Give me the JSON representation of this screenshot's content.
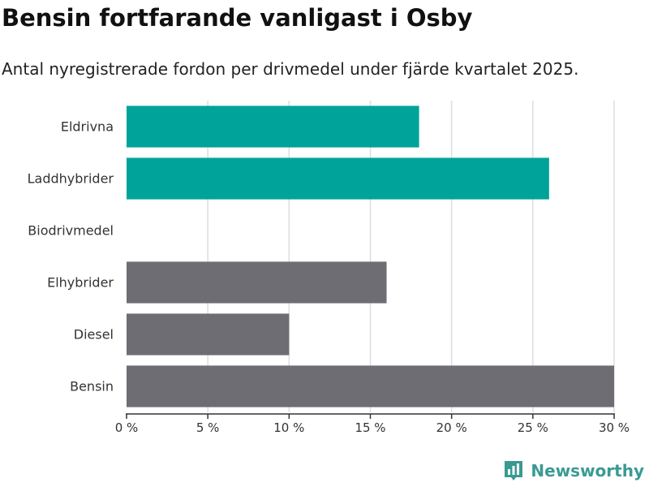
{
  "title": "Bensin fortfarande vanligast i Osby",
  "subtitle": "Antal nyregistrerade fordon per drivmedel under fjärde kvartalet 2025.",
  "brand": "Newsworthy",
  "colors": {
    "highlight": "#00A39A",
    "base": "#6E6D74",
    "grid": "#dddddd",
    "axis": "#333333",
    "brand": "#3a9a93"
  },
  "chart_data": {
    "type": "bar",
    "orientation": "horizontal",
    "categories": [
      "Eldrivna",
      "Laddhybrider",
      "Biodrivmedel",
      "Elhybrider",
      "Diesel",
      "Bensin"
    ],
    "values": [
      18,
      26,
      0,
      16,
      10,
      30
    ],
    "highlighted": [
      true,
      true,
      true,
      false,
      false,
      false
    ],
    "xlim": [
      0,
      30
    ],
    "xticks": [
      0,
      5,
      10,
      15,
      20,
      25,
      30
    ],
    "xtick_labels": [
      "0 %",
      "5 %",
      "10 %",
      "15 %",
      "20 %",
      "25 %",
      "30 %"
    ],
    "unit": "%",
    "grid": true
  }
}
